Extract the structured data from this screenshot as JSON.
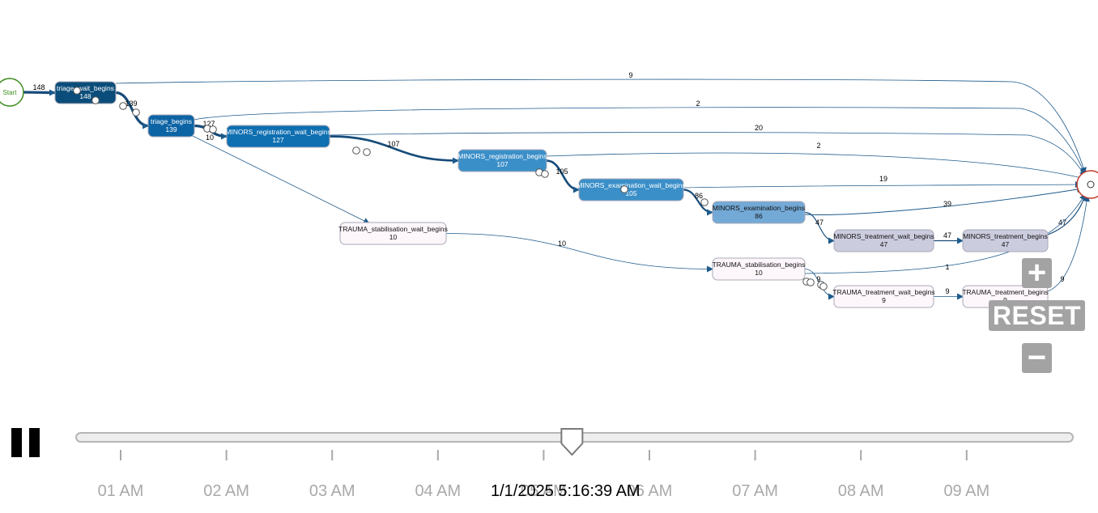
{
  "process_map": {
    "start_label": "Start",
    "nodes": [
      {
        "id": "triage_wait",
        "name": "triage_wait_begins",
        "count": "148",
        "fill": "#0b4d7a",
        "text_color": "#ffffff"
      },
      {
        "id": "triage",
        "name": "triage_begins",
        "count": "139",
        "fill": "#0c64a5",
        "text_color": "#ffffff"
      },
      {
        "id": "minors_reg_wait",
        "name": "MINORS_registration_wait_begins",
        "count": "127",
        "fill": "#0e6fb1",
        "text_color": "#ffffff"
      },
      {
        "id": "minors_reg",
        "name": "MINORS_registration_begins",
        "count": "107",
        "fill": "#3b8fc8",
        "text_color": "#ffffff"
      },
      {
        "id": "minors_exam_wait",
        "name": "MINORS_examination_wait_begins",
        "count": "105",
        "fill": "#3b8fc8",
        "text_color": "#ffffff"
      },
      {
        "id": "minors_exam",
        "name": "MINORS_examination_begins",
        "count": "86",
        "fill": "#73a9d6",
        "text_color": "#111111"
      },
      {
        "id": "minors_treat_wait",
        "name": "MINORS_treatment_wait_begins",
        "count": "47",
        "fill": "#ccccdf",
        "text_color": "#111111"
      },
      {
        "id": "minors_treat",
        "name": "MINORS_treatment_begins",
        "count": "47",
        "fill": "#ccccdf",
        "text_color": "#111111"
      },
      {
        "id": "trauma_stab_wait",
        "name": "TRAUMA_stabilisation_wait_begins",
        "count": "10",
        "fill": "#fdf6fb",
        "text_color": "#111111"
      },
      {
        "id": "trauma_stab",
        "name": "TRAUMA_stabilisation_begins",
        "count": "10",
        "fill": "#fdf6fb",
        "text_color": "#111111"
      },
      {
        "id": "trauma_treat_wait",
        "name": "TRAUMA_treatment_wait_begins",
        "count": "9",
        "fill": "#fdf6fb",
        "text_color": "#111111"
      },
      {
        "id": "trauma_treat",
        "name": "TRAUMA_treatment_begins",
        "count": "9",
        "fill": "#fdf6fb",
        "text_color": "#111111"
      }
    ],
    "edges": [
      {
        "from": "start",
        "to": "triage_wait",
        "count": "148"
      },
      {
        "from": "triage_wait",
        "to": "triage",
        "count": "139"
      },
      {
        "from": "triage",
        "to": "minors_reg_wait",
        "count": "127"
      },
      {
        "from": "triage",
        "to": "trauma_stab_wait",
        "count": "10"
      },
      {
        "from": "minors_reg_wait",
        "to": "minors_reg",
        "count": "107"
      },
      {
        "from": "minors_reg",
        "to": "minors_exam_wait",
        "count": "105"
      },
      {
        "from": "minors_exam_wait",
        "to": "minors_exam",
        "count": "86"
      },
      {
        "from": "minors_exam",
        "to": "minors_treat_wait",
        "count": "47"
      },
      {
        "from": "minors_treat_wait",
        "to": "minors_treat",
        "count": "47"
      },
      {
        "from": "trauma_stab_wait",
        "to": "trauma_stab",
        "count": "10"
      },
      {
        "from": "trauma_stab",
        "to": "trauma_treat_wait",
        "count": "9"
      },
      {
        "from": "trauma_treat_wait",
        "to": "trauma_treat",
        "count": "9"
      },
      {
        "from": "triage_wait",
        "to": "end",
        "count": "9"
      },
      {
        "from": "triage",
        "to": "end",
        "count": "2"
      },
      {
        "from": "minors_reg_wait",
        "to": "end",
        "count": "20"
      },
      {
        "from": "minors_reg",
        "to": "end",
        "count": "2"
      },
      {
        "from": "minors_exam_wait",
        "to": "end",
        "count": "19"
      },
      {
        "from": "minors_exam",
        "to": "end",
        "count": "39"
      },
      {
        "from": "minors_treat",
        "to": "end",
        "count": "47"
      },
      {
        "from": "trauma_stab",
        "to": "end",
        "count": "1"
      },
      {
        "from": "trauma_treat",
        "to": "end",
        "count": "9"
      }
    ],
    "colors": {
      "edge": "#1d5a8c",
      "edge_heavy": "#174c7a",
      "start": "#3c8c1e",
      "end": "#c0392b",
      "token_fill": "#ffffff",
      "token_stroke": "#555555"
    }
  },
  "controls": {
    "zoom_in_label": "+",
    "reset_label": "RESET",
    "zoom_out_label": "−",
    "pause_icon": "pause-icon"
  },
  "timeline": {
    "tick_labels": [
      "01 AM",
      "02 AM",
      "03 AM",
      "04 AM",
      "05 AM",
      "06 AM",
      "07 AM",
      "08 AM",
      "09 AM"
    ],
    "current_time": "1/1/2025 5:16:39 AM",
    "progress": 0.495,
    "tick_color": "#a9a9a9"
  }
}
